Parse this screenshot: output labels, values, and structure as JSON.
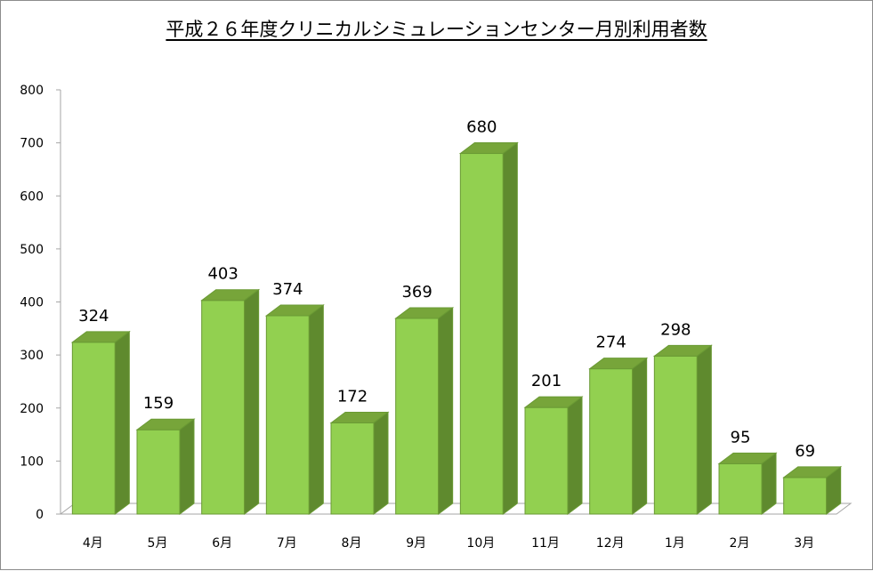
{
  "chart_data": {
    "type": "bar",
    "title": "平成２６年度クリニカルシミュレーションセンター月別利用者数",
    "categories": [
      "4月",
      "5月",
      "6月",
      "7月",
      "8月",
      "9月",
      "10月",
      "11月",
      "12月",
      "1月",
      "2月",
      "3月"
    ],
    "values": [
      324,
      159,
      403,
      374,
      172,
      369,
      680,
      201,
      274,
      298,
      95,
      69
    ],
    "xlabel": "",
    "ylabel": "",
    "ylim": [
      0,
      800
    ],
    "yticks": [
      0,
      100,
      200,
      300,
      400,
      500,
      600,
      700,
      800
    ],
    "data_labels": true,
    "grid": false,
    "legend": "none",
    "style": "3d-column",
    "colors": {
      "bar_front": "#92d050",
      "bar_top": "#77a53a",
      "bar_side": "#5f8a2e",
      "bar_edge": "#6a9a34",
      "axis": "#a6a6a6"
    }
  }
}
